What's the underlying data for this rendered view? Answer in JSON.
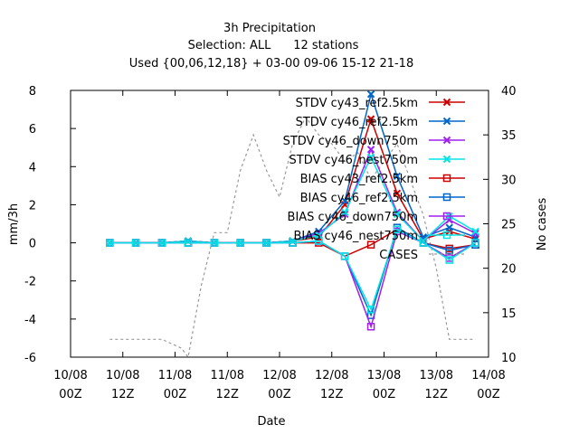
{
  "chart_data": {
    "type": "line",
    "title_lines": [
      "3h Precipitation",
      "Selection: ALL      12 stations",
      "Used {00,06,12,18} + 03-00 09-06 15-12 21-18"
    ],
    "xlabel": "Date",
    "ylabel": "mm/3h",
    "y2label": "No cases",
    "xlim": [
      0,
      96
    ],
    "ylim": [
      -6,
      8
    ],
    "y2lim": [
      10,
      40
    ],
    "xticks": [
      {
        "x": 0,
        "l1": "10/08",
        "l2": "00Z"
      },
      {
        "x": 12,
        "l1": "10/08",
        "l2": "12Z"
      },
      {
        "x": 24,
        "l1": "11/08",
        "l2": "00Z"
      },
      {
        "x": 36,
        "l1": "11/08",
        "l2": "12Z"
      },
      {
        "x": 48,
        "l1": "12/08",
        "l2": "00Z"
      },
      {
        "x": 60,
        "l1": "12/08",
        "l2": "12Z"
      },
      {
        "x": 72,
        "l1": "13/08",
        "l2": "00Z"
      },
      {
        "x": 84,
        "l1": "13/08",
        "l2": "12Z"
      },
      {
        "x": 96,
        "l1": "14/08",
        "l2": "00Z"
      }
    ],
    "yticks": [
      "-6",
      "-4",
      "-2",
      "0",
      "2",
      "4",
      "6",
      "8"
    ],
    "y2ticks": [
      "10",
      "15",
      "20",
      "25",
      "30",
      "35",
      "40"
    ],
    "x": [
      9,
      15,
      21,
      27,
      33,
      39,
      45,
      51,
      57,
      63,
      69,
      75,
      81,
      87,
      93
    ],
    "series": [
      {
        "name": "STDV cy43_ref2.5km",
        "color": "#cc0000",
        "marker": "x",
        "values": [
          0,
          0,
          0,
          0.1,
          0,
          0,
          0,
          0.1,
          0.3,
          2.0,
          6.5,
          2.6,
          0.2,
          0.6,
          0.2
        ]
      },
      {
        "name": "STDV cy46_ref2.5km",
        "color": "#0066cc",
        "marker": "x",
        "values": [
          0,
          0,
          0,
          0.1,
          0,
          0,
          0,
          0.1,
          0.6,
          2.2,
          7.8,
          3.5,
          0.3,
          0.8,
          0.3
        ]
      },
      {
        "name": "STDV cy46_down750m",
        "color": "#a020f0",
        "marker": "x",
        "values": [
          0,
          0,
          0,
          0.1,
          0,
          0,
          0,
          0.1,
          0.5,
          1.5,
          4.9,
          1.6,
          0.1,
          1.2,
          0.5
        ]
      },
      {
        "name": "STDV cy46_nest750m",
        "color": "#00e5e5",
        "marker": "x",
        "values": [
          0,
          0,
          0,
          0.1,
          0,
          0,
          0,
          0.1,
          0.4,
          1.6,
          4.5,
          1.5,
          0.1,
          1.4,
          0.6
        ]
      },
      {
        "name": "BIAS cy43_ref2.5km",
        "color": "#cc0000",
        "marker": "sq",
        "values": [
          0,
          0,
          0,
          0,
          0,
          0,
          0,
          0,
          0,
          -0.7,
          -0.1,
          0.7,
          0,
          -0.3,
          -0.1
        ]
      },
      {
        "name": "BIAS cy46_ref2.5km",
        "color": "#0066cc",
        "marker": "sq",
        "values": [
          0,
          0,
          0,
          0,
          0,
          0,
          0,
          0,
          0.1,
          -0.7,
          -3.8,
          0.8,
          0,
          -0.4,
          -0.1
        ]
      },
      {
        "name": "BIAS cy46_down750m",
        "color": "#a020f0",
        "marker": "sq",
        "values": [
          0,
          0,
          0,
          0,
          0,
          0,
          0,
          0,
          0.1,
          -0.7,
          -4.4,
          0.6,
          0,
          -0.8,
          0
        ]
      },
      {
        "name": "BIAS cy46_nest750m",
        "color": "#00e5e5",
        "marker": "sq",
        "values": [
          0,
          0,
          0,
          0,
          0,
          0,
          0,
          0,
          0.1,
          -0.7,
          -3.5,
          0.7,
          0,
          -0.9,
          0
        ]
      }
    ],
    "cases": {
      "name": "CASES",
      "color": "#999999",
      "x": [
        9,
        15,
        21,
        25.5,
        27,
        30,
        33,
        36,
        39,
        42,
        45,
        48,
        51,
        54,
        57,
        60,
        63,
        66,
        69,
        72,
        75,
        78,
        81,
        84,
        87,
        90,
        93
      ],
      "values": [
        12,
        12,
        12,
        11,
        10,
        18,
        24,
        24,
        31,
        35,
        31,
        28,
        34,
        37,
        35,
        34,
        32,
        33,
        30,
        32,
        34,
        30,
        26,
        20,
        12,
        12,
        12
      ]
    },
    "grid": false,
    "legend_position": "top-right"
  }
}
